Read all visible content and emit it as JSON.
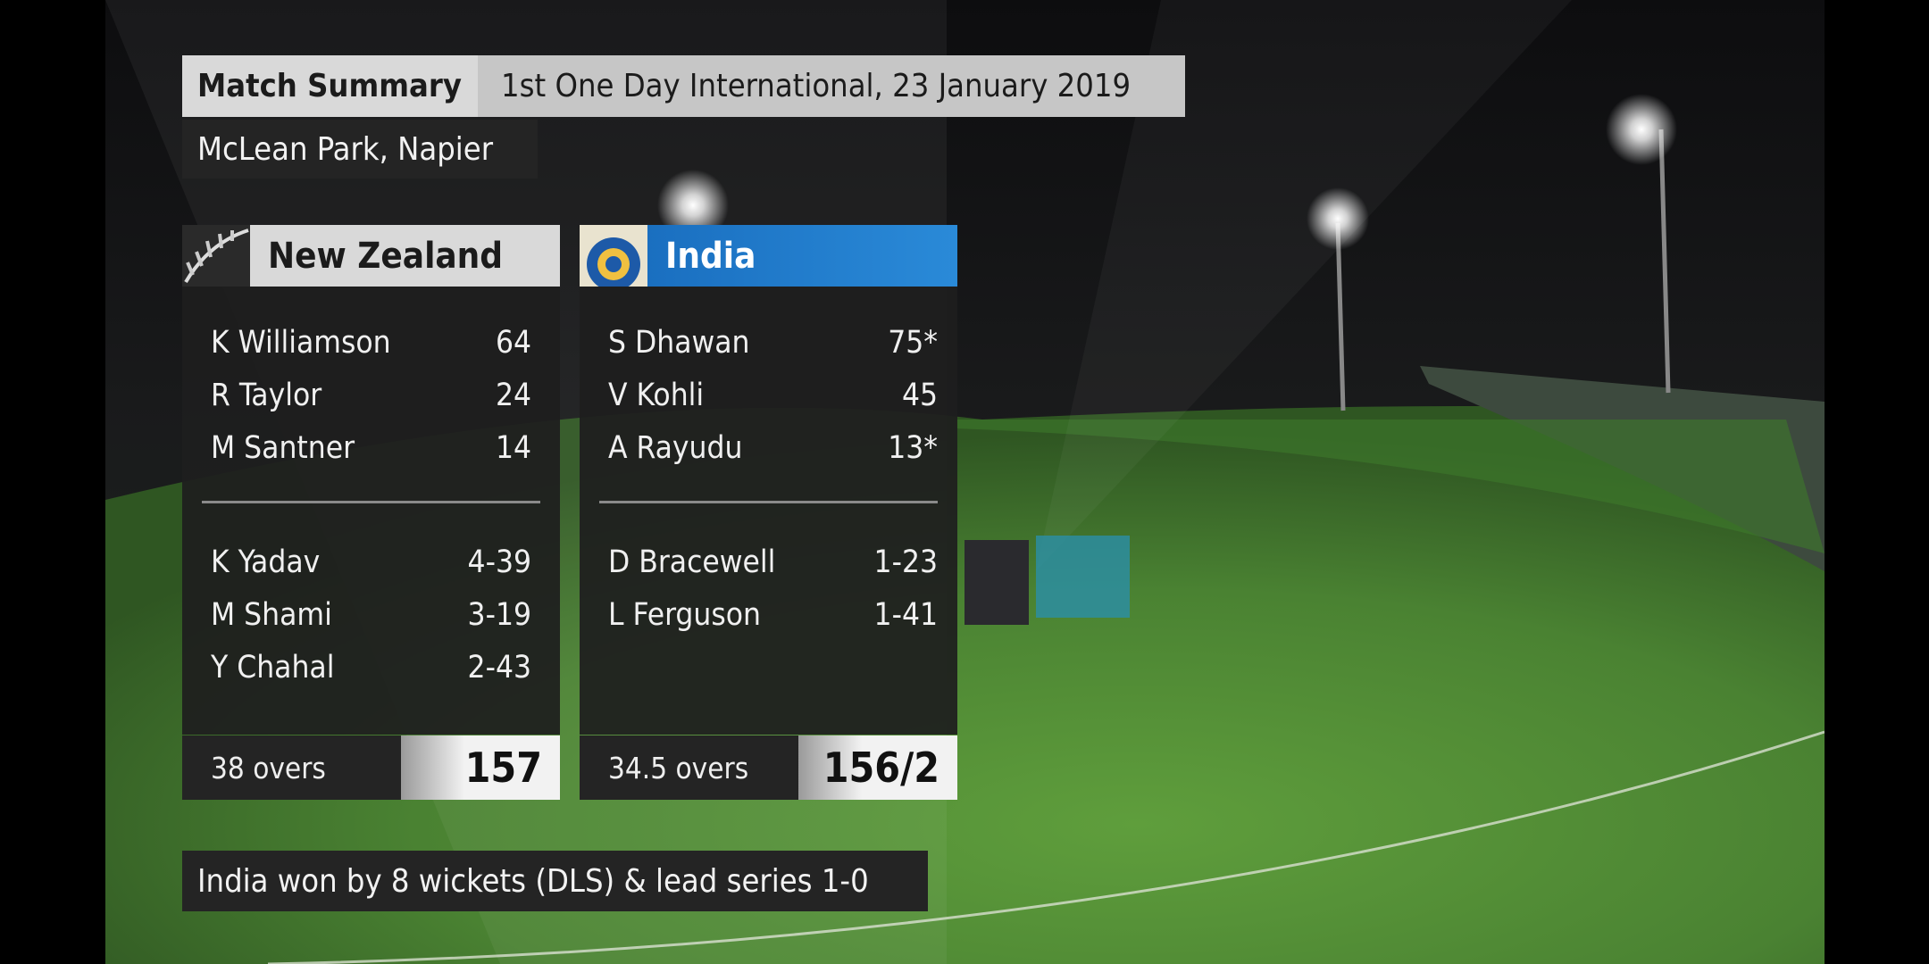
{
  "header": {
    "title": "Match Summary",
    "subtitle": "1st One Day International, 23 January 2019",
    "venue": "McLean Park, Napier"
  },
  "teams": [
    {
      "name": "New Zealand",
      "batting": [
        [
          "K Williamson",
          "64"
        ],
        [
          "R Taylor",
          "24"
        ],
        [
          "M Santner",
          "14"
        ]
      ],
      "bowling": [
        [
          "K Yadav",
          "4-39"
        ],
        [
          "M Shami",
          "3-19"
        ],
        [
          "Y Chahal",
          "2-43"
        ]
      ],
      "overs": "38 overs",
      "total": "157"
    },
    {
      "name": "India",
      "batting": [
        [
          "S Dhawan",
          "75*"
        ],
        [
          "V Kohli",
          "45"
        ],
        [
          "A Rayudu",
          "13*"
        ]
      ],
      "bowling": [
        [
          "D Bracewell",
          "1-23"
        ],
        [
          "L Ferguson",
          "1-41"
        ]
      ],
      "overs": "34.5 overs",
      "total": "156/2"
    }
  ],
  "result": "India won by 8 wickets (DLS) & lead series 1-0"
}
